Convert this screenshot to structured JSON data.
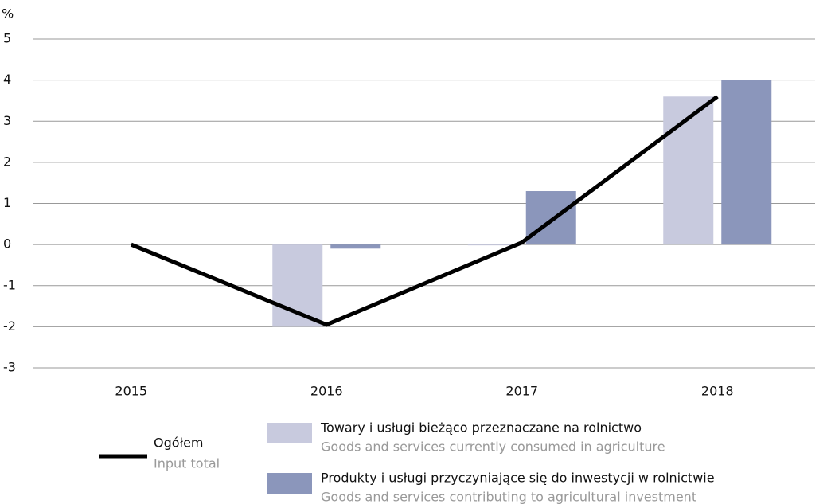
{
  "chart_data": {
    "type": "bar",
    "y_label": "%",
    "categories": [
      "2015",
      "2016",
      "2017",
      "2018"
    ],
    "series": [
      {
        "name": "Towary i usługi bieżąco przeznaczane na rolnictwo",
        "name_en": "Goods and services currently consumed in agriculture",
        "type": "bar",
        "color": "#c8cade",
        "values": [
          0,
          -2.0,
          -0.02,
          3.6
        ]
      },
      {
        "name": "Produkty i usługi przyczyniające się do inwestycji w rolnictwie",
        "name_en": "Goods and services contributing to agricultural investment",
        "type": "bar",
        "color": "#8b96bb",
        "values": [
          0,
          -0.1,
          1.3,
          4.0
        ]
      },
      {
        "name": "Ogółem",
        "name_en": "Input total",
        "type": "line",
        "color": "#000000",
        "values": [
          0,
          -1.95,
          0.05,
          3.6
        ]
      }
    ],
    "ylim": [
      -3,
      5
    ],
    "yticks": [
      -3,
      -2,
      -1,
      0,
      1,
      2,
      3,
      4,
      5
    ],
    "grid": true
  }
}
